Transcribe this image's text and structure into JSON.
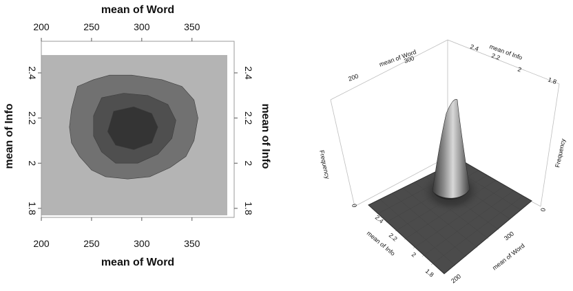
{
  "chart_data": [
    {
      "type": "heatmap",
      "title": "",
      "xlabel": "mean of Word",
      "ylabel": "mean of Info",
      "xlim": [
        200,
        392
      ],
      "ylim": [
        1.76,
        2.54
      ],
      "x_ticks": [
        200,
        250,
        300,
        350
      ],
      "y_ticks": [
        1.8,
        2,
        2.2,
        2.4
      ],
      "x_tick_labels": [
        "200",
        "250",
        "300",
        "350"
      ],
      "y_tick_labels": [
        "1.8",
        "2",
        "2.2",
        "2.4"
      ],
      "grid": false,
      "levels": [
        {
          "label": "background",
          "color": "#b4b4b4"
        },
        {
          "label": "outer",
          "color": "#717171"
        },
        {
          "label": "middle",
          "color": "#4f4f4f"
        },
        {
          "label": "peak",
          "color": "#343434"
        }
      ],
      "regions": [
        {
          "level": "outer",
          "outline": [
            [
              236,
              2.34
            ],
            [
              252,
              2.37
            ],
            [
              268,
              2.39
            ],
            [
              290,
              2.39
            ],
            [
              320,
              2.37
            ],
            [
              340,
              2.34
            ],
            [
              352,
              2.28
            ],
            [
              356,
              2.2
            ],
            [
              352,
              2.1
            ],
            [
              344,
              2.03
            ],
            [
              328,
              1.98
            ],
            [
              308,
              1.94
            ],
            [
              286,
              1.93
            ],
            [
              264,
              1.94
            ],
            [
              250,
              1.97
            ],
            [
              238,
              2.03
            ],
            [
              230,
              2.09
            ],
            [
              228,
              2.16
            ],
            [
              230,
              2.24
            ]
          ]
        },
        {
          "level": "middle",
          "outline": [
            [
              260,
              2.29
            ],
            [
              282,
              2.31
            ],
            [
              306,
              2.3
            ],
            [
              326,
              2.26
            ],
            [
              334,
              2.19
            ],
            [
              330,
              2.11
            ],
            [
              316,
              2.04
            ],
            [
              296,
              2.0
            ],
            [
              274,
              2.0
            ],
            [
              260,
              2.05
            ],
            [
              252,
              2.12
            ],
            [
              252,
              2.21
            ]
          ]
        },
        {
          "level": "peak",
          "outline": [
            [
              272,
              2.23
            ],
            [
              292,
              2.25
            ],
            [
              310,
              2.22
            ],
            [
              316,
              2.16
            ],
            [
              310,
              2.09
            ],
            [
              292,
              2.06
            ],
            [
              274,
              2.08
            ],
            [
              266,
              2.14
            ]
          ]
        }
      ]
    },
    {
      "type": "surface",
      "title": "",
      "xlabel": "mean of Word",
      "ylabel": "mean of Info",
      "zlabel": "Frequency",
      "x_ticks": [
        200,
        300
      ],
      "x_tick_labels": [
        "200",
        "300"
      ],
      "y_ticks": [
        1.8,
        2,
        2.2,
        2.4
      ],
      "y_tick_labels": [
        "1.8",
        "2",
        "2.2",
        "2.4"
      ],
      "z_ticks": [
        0
      ],
      "z_tick_labels": [
        "0"
      ],
      "peak": {
        "x": 295,
        "y": 2.15
      }
    }
  ]
}
